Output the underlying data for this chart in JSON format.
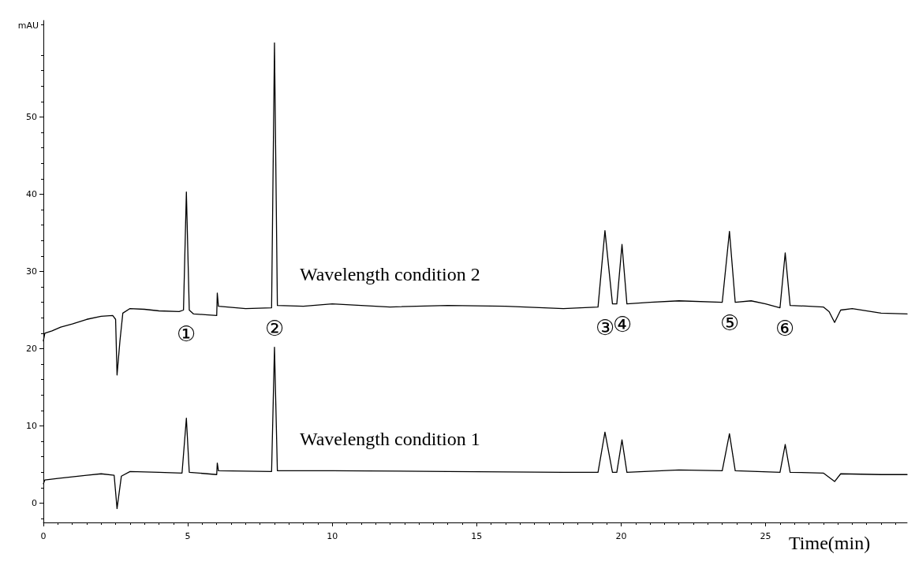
{
  "chart_data": {
    "type": "line",
    "xlabel": "Time(min)",
    "ylabel": "mAU",
    "xlim": [
      0,
      29.9
    ],
    "ylim": [
      -2.5,
      62.5
    ],
    "xticks": [
      0,
      5,
      10,
      15,
      20,
      25
    ],
    "yticks": [
      0,
      10,
      20,
      30,
      40,
      50
    ],
    "grid": false,
    "marker": "none",
    "line_style": "solid",
    "series": [
      {
        "name": "Wavelength condition 2",
        "color": "#000000",
        "x": [
          0,
          0.05,
          0.3,
          0.6,
          1.0,
          1.5,
          2.0,
          2.4,
          2.5,
          2.55,
          2.65,
          2.75,
          3.0,
          3.5,
          4.0,
          4.7,
          4.85,
          4.95,
          5.05,
          5.2,
          5.6,
          6.0,
          6.02,
          6.06,
          7.0,
          7.9,
          8.0,
          8.1,
          9,
          10,
          12,
          14,
          16,
          18,
          19.2,
          19.44,
          19.7,
          19.85,
          20.03,
          20.2,
          21,
          22,
          23.5,
          23.75,
          23.95,
          24.5,
          25.0,
          25.5,
          25.68,
          25.85,
          26.5,
          27.0,
          27.2,
          27.39,
          27.6,
          28,
          29,
          29.9
        ],
        "values": [
          21.0,
          22.0,
          22.3,
          22.8,
          23.2,
          23.8,
          24.2,
          24.3,
          23.8,
          16.6,
          21,
          24.6,
          25.2,
          25.1,
          24.9,
          24.8,
          25,
          40.3,
          25,
          24.5,
          24.4,
          24.3,
          27.2,
          25.5,
          25.2,
          25.3,
          59.6,
          25.6,
          25.5,
          25.8,
          25.4,
          25.6,
          25.5,
          25.2,
          25.4,
          35.3,
          25.8,
          25.8,
          33.5,
          25.8,
          26,
          26.2,
          26,
          35.2,
          26,
          26.2,
          25.8,
          25.3,
          32.4,
          25.6,
          25.5,
          25.4,
          24.8,
          23.4,
          25.0,
          25.2,
          24.6,
          24.5
        ]
      },
      {
        "name": "Wavelength condition 1",
        "color": "#000000",
        "x": [
          0,
          0.05,
          0.5,
          1.0,
          1.5,
          2.0,
          2.45,
          2.55,
          2.7,
          3.0,
          4.0,
          4.8,
          4.95,
          5.05,
          6.0,
          6.02,
          6.06,
          7.9,
          8.0,
          8.1,
          10,
          14,
          18,
          19.2,
          19.44,
          19.7,
          19.85,
          20.03,
          20.2,
          22,
          23.5,
          23.75,
          23.95,
          25.5,
          25.68,
          25.85,
          27.0,
          27.39,
          27.6,
          29,
          29.9
        ],
        "values": [
          2.5,
          3.0,
          3.2,
          3.4,
          3.6,
          3.8,
          3.6,
          -0.7,
          3.5,
          4.1,
          4.0,
          3.9,
          11.0,
          4.0,
          3.7,
          5.2,
          4.2,
          4.1,
          20.2,
          4.2,
          4.2,
          4.1,
          4.0,
          4.0,
          9.2,
          4.0,
          4.0,
          8.2,
          4.0,
          4.3,
          4.2,
          9.0,
          4.2,
          4.0,
          7.6,
          4.0,
          3.9,
          2.8,
          3.8,
          3.7,
          3.7
        ]
      }
    ],
    "annotations": [
      "①",
      "②",
      "③",
      "④",
      "⑤",
      "⑥"
    ]
  }
}
